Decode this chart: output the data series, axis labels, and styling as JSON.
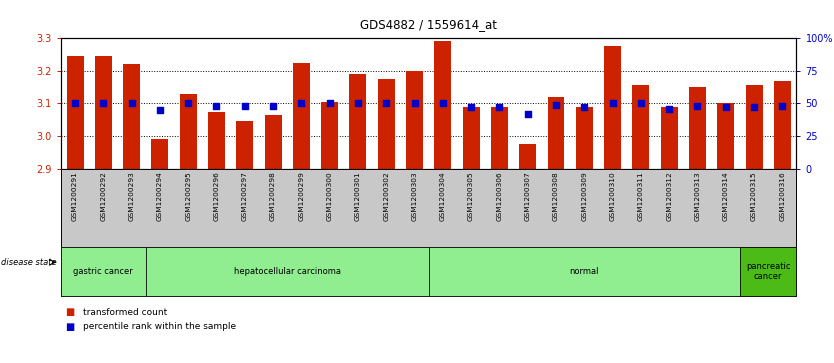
{
  "title": "GDS4882 / 1559614_at",
  "samples": [
    "GSM1200291",
    "GSM1200292",
    "GSM1200293",
    "GSM1200294",
    "GSM1200295",
    "GSM1200296",
    "GSM1200297",
    "GSM1200298",
    "GSM1200299",
    "GSM1200300",
    "GSM1200301",
    "GSM1200302",
    "GSM1200303",
    "GSM1200304",
    "GSM1200305",
    "GSM1200306",
    "GSM1200307",
    "GSM1200308",
    "GSM1200309",
    "GSM1200310",
    "GSM1200311",
    "GSM1200312",
    "GSM1200313",
    "GSM1200314",
    "GSM1200315",
    "GSM1200316"
  ],
  "transformed_count": [
    3.245,
    3.245,
    3.22,
    2.99,
    3.13,
    3.075,
    3.045,
    3.065,
    3.225,
    3.105,
    3.19,
    3.175,
    3.2,
    3.29,
    3.09,
    3.09,
    2.975,
    3.12,
    3.09,
    3.275,
    3.155,
    3.09,
    3.15,
    3.1,
    3.155,
    3.17
  ],
  "percentile_rank": [
    50,
    50,
    50,
    45,
    50,
    48,
    48,
    48,
    50,
    50,
    50,
    50,
    50,
    50,
    47,
    47,
    42,
    49,
    47,
    50,
    50,
    46,
    48,
    47,
    47,
    48
  ],
  "group_boundaries": [
    0,
    3,
    13,
    24,
    26
  ],
  "group_labels": [
    "gastric cancer",
    "hepatocellular carcinoma",
    "normal",
    "pancreatic\ncancer"
  ],
  "group_colors": [
    "#90EE90",
    "#90EE90",
    "#90EE90",
    "#4CBB17"
  ],
  "bar_color": "#CC2200",
  "dot_color": "#0000CC",
  "ylim_left": [
    2.9,
    3.3
  ],
  "ylim_right": [
    0,
    100
  ],
  "yticks_left": [
    2.9,
    3.0,
    3.1,
    3.2,
    3.3
  ],
  "yticks_right": [
    0,
    25,
    50,
    75,
    100
  ],
  "ytick_labels_right": [
    "0",
    "25",
    "50",
    "75",
    "100%"
  ],
  "grid_vals": [
    3.0,
    3.1,
    3.2
  ],
  "bar_width": 0.6,
  "bg_color": "#FFFFFF",
  "tick_area_color": "#C8C8C8"
}
